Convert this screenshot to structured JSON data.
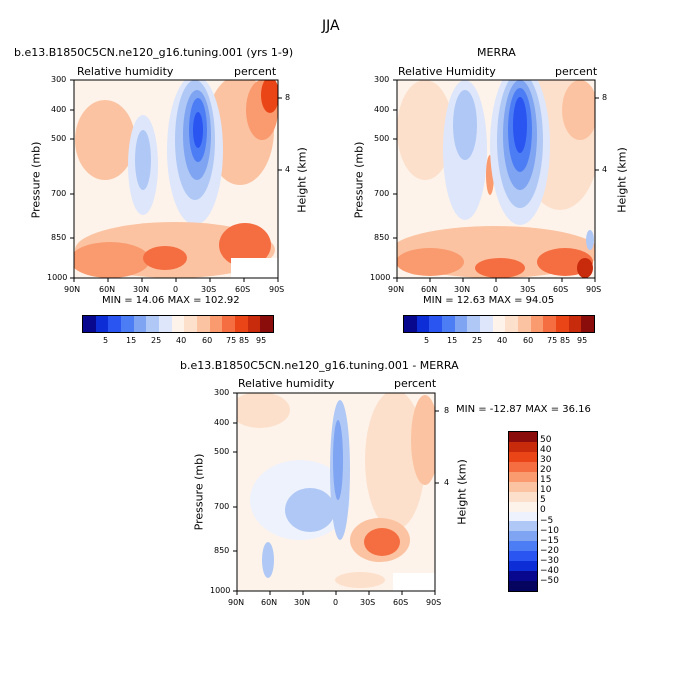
{
  "page_title": "JJA",
  "chart_data": [
    {
      "type": "heatmap",
      "title": "b.e13.B1850C5CN.ne120_g16.tuning.001 (yrs 1-9)",
      "left_label": "Relative humidity",
      "right_label": "percent",
      "xlabel": "",
      "ylabel": "Pressure (mb)",
      "y2label": "Height (km)",
      "x_ticks": [
        "90N",
        "60N",
        "30N",
        "0",
        "30S",
        "60S",
        "90S"
      ],
      "y_ticks": [
        "300",
        "400",
        "500",
        "700",
        "850",
        "1000"
      ],
      "y2_ticks": [
        "8",
        "4"
      ],
      "stats": "MIN =  14.06    MAX = 102.92",
      "colorbar": {
        "orientation": "horizontal",
        "labels": [
          "5",
          "15",
          "25",
          "40",
          "60",
          "75",
          "85",
          "95"
        ],
        "colors": [
          "#08088f",
          "#0d2dd6",
          "#2b55f0",
          "#4d7df5",
          "#7fa4f2",
          "#b0c8f5",
          "#dde6fb",
          "#fdf3ea",
          "#fde0cb",
          "#fbc3a1",
          "#f99a6f",
          "#f56e42",
          "#ea4516",
          "#c72b0c",
          "#8a0d0b"
        ]
      },
      "stats_placement": "below-plot"
    },
    {
      "type": "heatmap",
      "title": "MERRA",
      "left_label": "Relative Humidity",
      "right_label": "percent",
      "xlabel": "",
      "ylabel": "Pressure (mb)",
      "y2label": "Height (km)",
      "x_ticks": [
        "90N",
        "60N",
        "30N",
        "0",
        "30S",
        "60S",
        "90S"
      ],
      "y_ticks": [
        "300",
        "400",
        "500",
        "700",
        "850",
        "1000"
      ],
      "y2_ticks": [
        "8",
        "4"
      ],
      "stats": "MIN =  12.63    MAX =  94.05",
      "colorbar": {
        "orientation": "horizontal",
        "labels": [
          "5",
          "15",
          "25",
          "40",
          "60",
          "75",
          "85",
          "95"
        ],
        "colors": [
          "#08088f",
          "#0d2dd6",
          "#2b55f0",
          "#4d7df5",
          "#7fa4f2",
          "#b0c8f5",
          "#dde6fb",
          "#fdf3ea",
          "#fde0cb",
          "#fbc3a1",
          "#f99a6f",
          "#f56e42",
          "#ea4516",
          "#c72b0c",
          "#8a0d0b"
        ]
      },
      "stats_placement": "below-plot"
    },
    {
      "type": "heatmap",
      "title": "b.e13.B1850C5CN.ne120_g16.tuning.001 - MERRA",
      "left_label": "Relative humidity",
      "right_label": "percent",
      "xlabel": "",
      "ylabel": "Pressure (mb)",
      "y2label": "Height (km)",
      "x_ticks": [
        "90N",
        "60N",
        "30N",
        "0",
        "30S",
        "60S",
        "90S"
      ],
      "y_ticks": [
        "300",
        "400",
        "500",
        "700",
        "850",
        "1000"
      ],
      "y2_ticks": [
        "8",
        "4"
      ],
      "stats": "MIN = -12.87    MAX =  36.16",
      "colorbar": {
        "orientation": "vertical",
        "labels": [
          "50",
          "40",
          "30",
          "20",
          "15",
          "10",
          "5",
          "0",
          "−5",
          "−10",
          "−15",
          "−20",
          "−30",
          "−40",
          "−50"
        ],
        "colors": [
          "#8a0d0b",
          "#c72b0c",
          "#ea4516",
          "#f56e42",
          "#f99a6f",
          "#fbc3a1",
          "#fde0cb",
          "#fdf3ea",
          "#eef2fc",
          "#b0c8f5",
          "#7fa4f2",
          "#4d7df5",
          "#2b55f0",
          "#0d2dd6",
          "#08088f",
          "#050560"
        ]
      },
      "stats_placement": "top-right"
    }
  ]
}
